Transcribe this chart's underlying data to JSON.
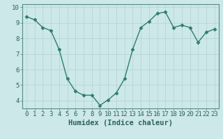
{
  "x": [
    0,
    1,
    2,
    3,
    4,
    5,
    6,
    7,
    8,
    9,
    10,
    11,
    12,
    13,
    14,
    15,
    16,
    17,
    18,
    19,
    20,
    21,
    22,
    23
  ],
  "y": [
    9.4,
    9.2,
    8.7,
    8.5,
    7.3,
    5.4,
    4.6,
    4.35,
    4.35,
    3.7,
    4.05,
    4.5,
    5.4,
    7.3,
    8.7,
    9.1,
    9.6,
    9.7,
    8.7,
    8.85,
    8.7,
    7.75,
    8.4,
    8.6
  ],
  "line_color": "#2e7d6e",
  "bg_color": "#cce8e8",
  "grid_color": "#b8d4d4",
  "xlabel": "Humidex (Indice chaleur)",
  "ylim": [
    3.5,
    10.2
  ],
  "yticks": [
    4,
    5,
    6,
    7,
    8,
    9,
    10
  ],
  "xticks": [
    0,
    1,
    2,
    3,
    4,
    5,
    6,
    7,
    8,
    9,
    10,
    11,
    12,
    13,
    14,
    15,
    16,
    17,
    18,
    19,
    20,
    21,
    22,
    23
  ],
  "marker": "D",
  "markersize": 2.5,
  "linewidth": 1.0,
  "xlabel_fontsize": 7.5,
  "tick_fontsize": 6.5,
  "spine_color": "#5a8a8a",
  "tick_color": "#2e6060"
}
